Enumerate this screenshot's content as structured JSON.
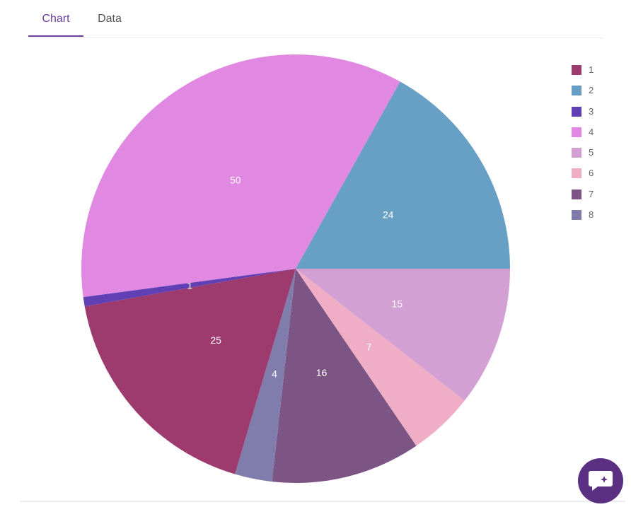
{
  "tabs": [
    {
      "label": "Chart",
      "active": true
    },
    {
      "label": "Data",
      "active": false
    }
  ],
  "chat_widget": {
    "icon": "chat-icon",
    "color": "#5b2f82"
  },
  "chart_data": {
    "type": "pie",
    "start_angle_deg": 0,
    "direction": "clockwise",
    "slices": [
      {
        "label": "1",
        "value": 25,
        "color": "#9e3b6e"
      },
      {
        "label": "2",
        "value": 24,
        "color": "#689fc4"
      },
      {
        "label": "3",
        "value": 1,
        "color": "#6040b4"
      },
      {
        "label": "4",
        "value": 50,
        "color": "#e088e2"
      },
      {
        "label": "5",
        "value": 15,
        "color": "#d2a0d2"
      },
      {
        "label": "6",
        "value": 7,
        "color": "#f0aec6"
      },
      {
        "label": "7",
        "value": 16,
        "color": "#7c5584"
      },
      {
        "label": "8",
        "value": 4,
        "color": "#807cac"
      }
    ],
    "draw_order": [
      "5",
      "6",
      "7",
      "8",
      "1",
      "3",
      "4",
      "2"
    ],
    "legend_position": "top-right"
  }
}
